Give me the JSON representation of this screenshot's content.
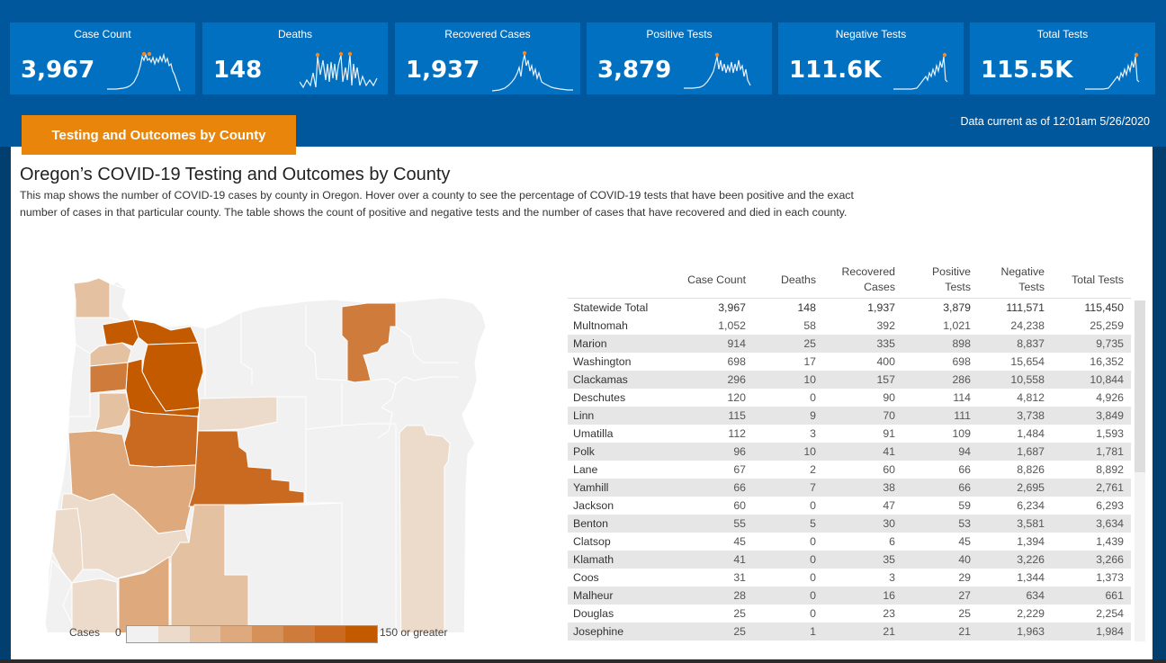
{
  "kpis": [
    {
      "title": "Case Count",
      "value": "3,967"
    },
    {
      "title": "Deaths",
      "value": "148"
    },
    {
      "title": "Recovered Cases",
      "value": "1,937"
    },
    {
      "title": "Positive Tests",
      "value": "3,879"
    },
    {
      "title": "Negative Tests",
      "value": "111.6K"
    },
    {
      "title": "Total Tests",
      "value": "115.5K"
    }
  ],
  "tab_label": "Testing and Outcomes by County",
  "data_current": "Data current as of 12:01am 5/26/2020",
  "heading": "Oregon’s COVID-19 Testing and Outcomes by County",
  "description": "This map shows the number of COVID-19 cases by county in Oregon. Hover over a county to see the percentage of COVID-19 tests that have been positive and the exact number of cases in that particular county. The table shows the count of positive and negative tests and the number of cases that have recovered and died in each county.",
  "legend": {
    "title": "Cases",
    "min_label": "0",
    "max_label": "150 or greater",
    "colors": [
      "#f1f1f1",
      "#ecdbcb",
      "#e4c1a1",
      "#dea97c",
      "#d69158",
      "#cf7b3c",
      "#ca6a20",
      "#c45a00"
    ]
  },
  "table": {
    "headers": {
      "case_count": "Case Count",
      "deaths": "Deaths",
      "recovered_1": "Recovered",
      "recovered_2": "Cases",
      "positive_1": "Positive",
      "positive_2": "Tests",
      "negative_1": "Negative",
      "negative_2": "Tests",
      "total": "Total Tests"
    },
    "rows": [
      [
        "Statewide Total",
        "3,967",
        "148",
        "1,937",
        "3,879",
        "111,571",
        "115,450"
      ],
      [
        "Multnomah",
        "1,052",
        "58",
        "392",
        "1,021",
        "24,238",
        "25,259"
      ],
      [
        "Marion",
        "914",
        "25",
        "335",
        "898",
        "8,837",
        "9,735"
      ],
      [
        "Washington",
        "698",
        "17",
        "400",
        "698",
        "15,654",
        "16,352"
      ],
      [
        "Clackamas",
        "296",
        "10",
        "157",
        "286",
        "10,558",
        "10,844"
      ],
      [
        "Deschutes",
        "120",
        "0",
        "90",
        "114",
        "4,812",
        "4,926"
      ],
      [
        "Linn",
        "115",
        "9",
        "70",
        "111",
        "3,738",
        "3,849"
      ],
      [
        "Umatilla",
        "112",
        "3",
        "91",
        "109",
        "1,484",
        "1,593"
      ],
      [
        "Polk",
        "96",
        "10",
        "41",
        "94",
        "1,687",
        "1,781"
      ],
      [
        "Lane",
        "67",
        "2",
        "60",
        "66",
        "8,826",
        "8,892"
      ],
      [
        "Yamhill",
        "66",
        "7",
        "38",
        "66",
        "2,695",
        "2,761"
      ],
      [
        "Jackson",
        "60",
        "0",
        "47",
        "59",
        "6,234",
        "6,293"
      ],
      [
        "Benton",
        "55",
        "5",
        "30",
        "53",
        "3,581",
        "3,634"
      ],
      [
        "Clatsop",
        "45",
        "0",
        "6",
        "45",
        "1,394",
        "1,439"
      ],
      [
        "Klamath",
        "41",
        "0",
        "35",
        "40",
        "3,226",
        "3,266"
      ],
      [
        "Coos",
        "31",
        "0",
        "3",
        "29",
        "1,344",
        "1,373"
      ],
      [
        "Malheur",
        "28",
        "0",
        "16",
        "27",
        "634",
        "661"
      ],
      [
        "Douglas",
        "25",
        "0",
        "23",
        "25",
        "2,229",
        "2,254"
      ],
      [
        "Josephine",
        "25",
        "1",
        "21",
        "21",
        "1,963",
        "1,984"
      ]
    ]
  },
  "colors": {
    "header_bg": "#01579b",
    "card_bg": "#0170c1",
    "tab_bg": "#e8850a",
    "spark_highlight": "#f08a24"
  }
}
